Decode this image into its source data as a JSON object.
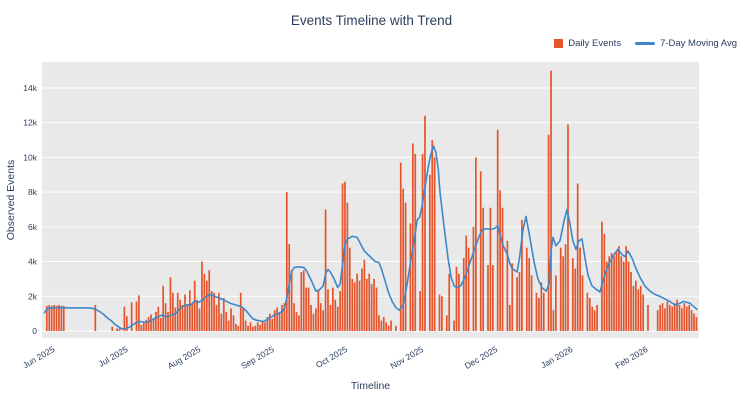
{
  "title": "Events Timeline with Trend",
  "axes": {
    "x_title": "Timeline",
    "y_title": "Observed Events"
  },
  "legend": {
    "items": [
      {
        "label": "Daily Events",
        "swatch": "square",
        "color": "#e4552d"
      },
      {
        "label": "7-Day Moving Avg",
        "swatch": "line",
        "color": "#3e87c9"
      }
    ]
  },
  "colors": {
    "bar": "#e4552d",
    "line": "#3e87c9",
    "plot_background": "#e9e9e9",
    "gridline": "#ffffff",
    "text": "#2a3f5f"
  },
  "chart_data": {
    "type": "bar+line",
    "title": "Events Timeline with Trend",
    "xlabel": "Timeline",
    "ylabel": "Observed Events",
    "unit": "thousands of events (axis shows k)",
    "ylim_k": [
      0,
      15.5
    ],
    "grid": true,
    "legend_position": "top-right",
    "yticks": {
      "values_k": [
        0,
        2,
        4,
        6,
        8,
        10,
        12,
        14
      ],
      "labels": [
        "0",
        "2k",
        "4k",
        "6k",
        "8k",
        "10k",
        "12k",
        "14k"
      ]
    },
    "xticks": [
      {
        "label": "Jun 2025",
        "day": 4.5
      },
      {
        "label": "Jul 2025",
        "day": 34.7
      },
      {
        "label": "Aug 2025",
        "day": 64.7
      },
      {
        "label": "Sep 2025",
        "day": 95.0
      },
      {
        "label": "Oct 2025",
        "day": 125.2
      },
      {
        "label": "Nov 2025",
        "day": 156.6
      },
      {
        "label": "Dec 2025",
        "day": 187.2
      },
      {
        "label": "Jan 2026",
        "day": 218.2
      },
      {
        "label": "Feb 2026",
        "day": 249.2
      }
    ],
    "series": [
      {
        "name": "Daily Events",
        "type": "bar",
        "color": "#e4552d",
        "x_unit": "day index from plot start (tick mapping in xticks)",
        "values_k": [
          0,
          1.45,
          1.5,
          1.45,
          1.5,
          1.45,
          1.5,
          1.45,
          1.45,
          0,
          0,
          0,
          0,
          0,
          0,
          0,
          0,
          0,
          0,
          0,
          0,
          1.5,
          0,
          0,
          0,
          0,
          0,
          0,
          0.25,
          0,
          0.15,
          0.15,
          0,
          1.4,
          0.85,
          0,
          1.65,
          0,
          1.7,
          2.05,
          0.35,
          0.5,
          0.65,
          0.8,
          0.95,
          0.7,
          1.1,
          1.4,
          0.75,
          2.6,
          1.6,
          1.1,
          3.1,
          2.2,
          1.35,
          2.2,
          1.8,
          1.5,
          2.1,
          1.55,
          2.35,
          1.6,
          2.9,
          1.8,
          1.3,
          4.0,
          3.3,
          2.9,
          3.5,
          2.3,
          2.2,
          1.5,
          2.2,
          1.0,
          1.9,
          1.1,
          0.6,
          1.3,
          0.9,
          0.4,
          0.3,
          2.2,
          1.3,
          0.6,
          0.3,
          0.5,
          0.25,
          0.3,
          0.5,
          0.35,
          0.6,
          0.5,
          0.8,
          1.0,
          0.7,
          1.2,
          1.35,
          1.1,
          1.5,
          1.6,
          8.0,
          5.0,
          3.5,
          1.6,
          1.1,
          0.9,
          3.4,
          3.5,
          2.5,
          2.5,
          1.5,
          1.0,
          1.3,
          2.4,
          1.6,
          1.2,
          7.0,
          2.4,
          1.5,
          2.5,
          1.8,
          1.4,
          2.3,
          8.5,
          8.6,
          7.4,
          4.8,
          3.0,
          2.8,
          3.3,
          2.9,
          3.6,
          4.1,
          3.0,
          3.3,
          2.7,
          3.0,
          2.5,
          0.9,
          0.6,
          0.8,
          0.5,
          0.3,
          0.6,
          0,
          0.3,
          0,
          9.7,
          8.2,
          7.4,
          0,
          6.2,
          10.8,
          10.2,
          0,
          2.3,
          10.2,
          12.4,
          0,
          9.0,
          11.0,
          10.0,
          0,
          2.1,
          2.0,
          0,
          0.9,
          3.3,
          0,
          0.6,
          3.7,
          3.3,
          0,
          4.2,
          5.5,
          4.8,
          0,
          6.0,
          10.0,
          0,
          9.2,
          7.1,
          0,
          3.8,
          7.1,
          3.8,
          0,
          11.6,
          8.1,
          7.1,
          0,
          5.2,
          1.5,
          3.9,
          0,
          3.1,
          3.4,
          6.4,
          0,
          4.8,
          4.2,
          3.2,
          0,
          2.2,
          1.9,
          2.8,
          2.2,
          0,
          11.3,
          15.0,
          1.2,
          3.2,
          0,
          4.8,
          4.3,
          5.0,
          11.9,
          0,
          4.2,
          3.6,
          8.5,
          4.8,
          3.2,
          0,
          2.2,
          1.9,
          1.4,
          1.2,
          1.5,
          0,
          6.3,
          5.6,
          4.0,
          4.3,
          4.5,
          4.3,
          4.6,
          4.9,
          4.3,
          4.0,
          4.9,
          4.0,
          3.4,
          2.6,
          2.9,
          2.4,
          2.6,
          2.1,
          0,
          1.5,
          0,
          0,
          0,
          1.2,
          1.5,
          1.6,
          1.3,
          1.7,
          1.5,
          1.4,
          1.6,
          1.8,
          1.5,
          1.3,
          1.6,
          1.4,
          1.5,
          1.2,
          1.0,
          0.8,
          0
        ]
      },
      {
        "name": "7-Day Moving Avg",
        "type": "line",
        "color": "#3e87c9",
        "points_day_k": [
          [
            0,
            1.05
          ],
          [
            1,
            1.25
          ],
          [
            2,
            1.33
          ],
          [
            6,
            1.35
          ],
          [
            10,
            1.33
          ],
          [
            14,
            1.33
          ],
          [
            18,
            1.33
          ],
          [
            20,
            1.3
          ],
          [
            21.5,
            1.22
          ],
          [
            23,
            1.1
          ],
          [
            24.5,
            0.95
          ],
          [
            26,
            0.75
          ],
          [
            27.5,
            0.6
          ],
          [
            29,
            0.4
          ],
          [
            30.5,
            0.25
          ],
          [
            32,
            0.12
          ],
          [
            33.5,
            0.13
          ],
          [
            35,
            0.22
          ],
          [
            36.5,
            0.35
          ],
          [
            38,
            0.5
          ],
          [
            39.5,
            0.55
          ],
          [
            41,
            0.52
          ],
          [
            42.5,
            0.5
          ],
          [
            44,
            0.62
          ],
          [
            45.5,
            0.72
          ],
          [
            47,
            0.82
          ],
          [
            48.5,
            0.92
          ],
          [
            50,
            0.82
          ],
          [
            51.5,
            0.85
          ],
          [
            53,
            0.95
          ],
          [
            54.5,
            1.05
          ],
          [
            56,
            1.3
          ],
          [
            57.5,
            1.45
          ],
          [
            59,
            1.5
          ],
          [
            60.5,
            1.52
          ],
          [
            62,
            1.72
          ],
          [
            63.5,
            1.65
          ],
          [
            65,
            1.75
          ],
          [
            66.5,
            1.95
          ],
          [
            68,
            2.1
          ],
          [
            69.5,
            2.05
          ],
          [
            71,
            1.95
          ],
          [
            72.5,
            1.88
          ],
          [
            74,
            1.78
          ],
          [
            75.5,
            1.68
          ],
          [
            77,
            1.58
          ],
          [
            78.5,
            1.52
          ],
          [
            80,
            1.45
          ],
          [
            81.5,
            1.38
          ],
          [
            83,
            1.2
          ],
          [
            84.5,
            0.95
          ],
          [
            86,
            0.7
          ],
          [
            87.5,
            0.62
          ],
          [
            89,
            0.58
          ],
          [
            90.5,
            0.55
          ],
          [
            92,
            0.68
          ],
          [
            93.5,
            0.8
          ],
          [
            95,
            0.92
          ],
          [
            96.5,
            1.0
          ],
          [
            98,
            1.12
          ],
          [
            99,
            1.3
          ],
          [
            100,
            1.9
          ],
          [
            101,
            2.7
          ],
          [
            102,
            3.4
          ],
          [
            103,
            3.65
          ],
          [
            105,
            3.7
          ],
          [
            107,
            3.65
          ],
          [
            108,
            3.5
          ],
          [
            110,
            2.95
          ],
          [
            112,
            2.3
          ],
          [
            113,
            2.3
          ],
          [
            114,
            2.45
          ],
          [
            115,
            2.6
          ],
          [
            116,
            3.3
          ],
          [
            117,
            3.55
          ],
          [
            118,
            3.4
          ],
          [
            119.5,
            3.0
          ],
          [
            121,
            2.5
          ],
          [
            122,
            2.7
          ],
          [
            123,
            3.8
          ],
          [
            124,
            5.0
          ],
          [
            125,
            5.3
          ],
          [
            127,
            5.45
          ],
          [
            129,
            5.4
          ],
          [
            130.5,
            5.0
          ],
          [
            132,
            4.6
          ],
          [
            133.5,
            4.4
          ],
          [
            135,
            4.2
          ],
          [
            136.5,
            4.0
          ],
          [
            138,
            3.95
          ],
          [
            139,
            3.6
          ],
          [
            140.5,
            2.9
          ],
          [
            142,
            2.2
          ],
          [
            143.5,
            1.7
          ],
          [
            145,
            1.35
          ],
          [
            146.5,
            1.2
          ],
          [
            148,
            1.5
          ],
          [
            149.5,
            2.6
          ],
          [
            151,
            3.9
          ],
          [
            152.5,
            5.2
          ],
          [
            153.8,
            6.4
          ],
          [
            154.8,
            6.55
          ],
          [
            155.8,
            7.2
          ],
          [
            157,
            8.3
          ],
          [
            158.3,
            9.4
          ],
          [
            159.3,
            10.1
          ],
          [
            160.5,
            10.65
          ],
          [
            161.5,
            10.3
          ],
          [
            162.5,
            9.3
          ],
          [
            163.2,
            8.0
          ],
          [
            164.9,
            6.0
          ],
          [
            166.5,
            4.2
          ],
          [
            167.8,
            3.1
          ],
          [
            169,
            2.6
          ],
          [
            170.2,
            2.5
          ],
          [
            171.8,
            2.6
          ],
          [
            173.5,
            3.1
          ],
          [
            175.5,
            3.9
          ],
          [
            177.2,
            4.6
          ],
          [
            178.9,
            5.3
          ],
          [
            180.5,
            5.8
          ],
          [
            182.2,
            5.9
          ],
          [
            183.8,
            5.85
          ],
          [
            185.5,
            5.9
          ],
          [
            187,
            6.05
          ],
          [
            189,
            5.0
          ],
          [
            191,
            4.4
          ],
          [
            192,
            3.9
          ],
          [
            193,
            3.6
          ],
          [
            195,
            3.4
          ],
          [
            196,
            4.2
          ],
          [
            197.4,
            5.8
          ],
          [
            198.7,
            6.6
          ],
          [
            200,
            5.6
          ],
          [
            202,
            4.0
          ],
          [
            203.6,
            3.0
          ],
          [
            205.3,
            2.5
          ],
          [
            207,
            2.3
          ],
          [
            208.2,
            2.7
          ],
          [
            209,
            4.6
          ],
          [
            209.8,
            5.4
          ],
          [
            211,
            4.9
          ],
          [
            212.7,
            5.2
          ],
          [
            214.3,
            6.3
          ],
          [
            215.6,
            7.0
          ],
          [
            216.8,
            6.2
          ],
          [
            218,
            5.2
          ],
          [
            219.3,
            4.7
          ],
          [
            220.5,
            5.2
          ],
          [
            221.8,
            5.3
          ],
          [
            223,
            4.2
          ],
          [
            224.3,
            3.2
          ],
          [
            225.9,
            2.6
          ],
          [
            227.6,
            2.4
          ],
          [
            229.2,
            2.25
          ],
          [
            230.4,
            2.9
          ],
          [
            232.1,
            3.6
          ],
          [
            233.3,
            4.0
          ],
          [
            235,
            4.4
          ],
          [
            236.6,
            4.7
          ],
          [
            238.3,
            4.4
          ],
          [
            239.5,
            4.3
          ],
          [
            240.8,
            4.6
          ],
          [
            242.4,
            4.2
          ],
          [
            244,
            3.6
          ],
          [
            245.7,
            3.1
          ],
          [
            247.7,
            2.6
          ],
          [
            249.8,
            2.3
          ],
          [
            251.9,
            2.1
          ],
          [
            253.9,
            2.0
          ],
          [
            256,
            1.85
          ],
          [
            258,
            1.7
          ],
          [
            260.1,
            1.5
          ],
          [
            262.2,
            1.6
          ],
          [
            263.8,
            1.7
          ],
          [
            265.1,
            1.65
          ],
          [
            266.3,
            1.6
          ],
          [
            267.5,
            1.45
          ],
          [
            269.2,
            1.25
          ]
        ]
      }
    ]
  }
}
